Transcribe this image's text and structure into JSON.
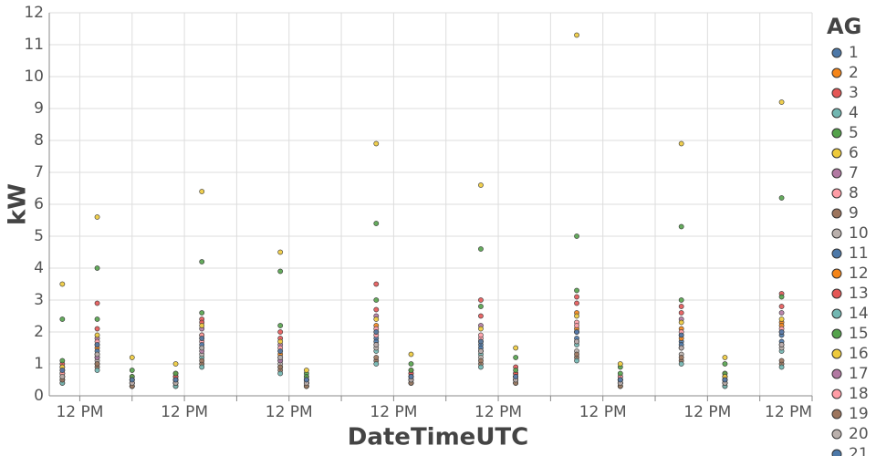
{
  "chart_data": {
    "type": "scatter",
    "x_label": "DateTimeUTC",
    "y_label": "kW",
    "legend_title": "AG",
    "grid": true,
    "legend": "right",
    "xlim": [
      5,
      180
    ],
    "ylim": [
      0,
      12
    ],
    "xticks": [
      {
        "value": 12,
        "label": "12 PM"
      },
      {
        "value": 24,
        "label": null
      },
      {
        "value": 36,
        "label": "12 PM"
      },
      {
        "value": 48,
        "label": null
      },
      {
        "value": 60,
        "label": "12 PM"
      },
      {
        "value": 72,
        "label": null
      },
      {
        "value": 84,
        "label": "12 PM"
      },
      {
        "value": 96,
        "label": null
      },
      {
        "value": 108,
        "label": "12 PM"
      },
      {
        "value": 120,
        "label": null
      },
      {
        "value": 132,
        "label": "12 PM"
      },
      {
        "value": 144,
        "label": null
      },
      {
        "value": 156,
        "label": "12 PM"
      },
      {
        "value": 168,
        "label": null
      },
      {
        "value": 180,
        "label": "12 PM"
      }
    ],
    "yticks": [
      0,
      1,
      2,
      3,
      4,
      5,
      6,
      7,
      8,
      9,
      10,
      11,
      12
    ],
    "x": [
      8,
      16,
      24,
      34,
      40,
      58,
      64,
      80,
      88,
      104,
      112,
      126,
      136,
      150,
      160,
      173
    ],
    "series": [
      {
        "name": "1",
        "color": "#4c78a8",
        "values": [
          0.6,
          1.2,
          0.4,
          0.5,
          1.5,
          1.1,
          0.4,
          1.8,
          0.5,
          1.6,
          0.6,
          2.0,
          0.5,
          1.7,
          0.6,
          1.9
        ]
      },
      {
        "name": "2",
        "color": "#f58518",
        "values": [
          0.8,
          1.5,
          0.5,
          0.4,
          1.9,
          1.3,
          0.5,
          2.2,
          0.6,
          1.4,
          0.7,
          2.6,
          0.4,
          2.1,
          0.5,
          2.3
        ]
      },
      {
        "name": "3",
        "color": "#e45756",
        "values": [
          1.0,
          2.9,
          0.6,
          0.7,
          2.4,
          2.0,
          0.6,
          3.5,
          0.8,
          3.0,
          0.9,
          3.1,
          0.6,
          2.8,
          0.7,
          3.2
        ]
      },
      {
        "name": "4",
        "color": "#72b7b2",
        "values": [
          0.5,
          1.0,
          0.3,
          0.4,
          1.2,
          0.9,
          0.3,
          1.4,
          0.4,
          1.3,
          0.5,
          1.6,
          0.4,
          1.5,
          0.4,
          1.4
        ]
      },
      {
        "name": "5",
        "color": "#54a24b",
        "values": [
          2.4,
          4.0,
          0.8,
          0.6,
          4.2,
          3.9,
          0.7,
          5.4,
          1.0,
          4.6,
          1.2,
          5.0,
          0.9,
          5.3,
          1.0,
          6.2
        ]
      },
      {
        "name": "6",
        "color": "#eeca3b",
        "values": [
          3.5,
          5.6,
          1.2,
          1.0,
          6.4,
          4.5,
          0.8,
          7.9,
          1.3,
          6.6,
          1.5,
          11.3,
          1.0,
          7.9,
          1.2,
          9.2
        ]
      },
      {
        "name": "7",
        "color": "#b279a2",
        "values": [
          0.7,
          1.8,
          0.4,
          0.5,
          2.1,
          1.6,
          0.5,
          2.5,
          0.6,
          2.2,
          0.6,
          2.0,
          0.5,
          2.4,
          0.6,
          2.6
        ]
      },
      {
        "name": "8",
        "color": "#ff9da6",
        "values": [
          0.9,
          1.3,
          0.5,
          0.6,
          1.7,
          1.2,
          0.4,
          1.9,
          0.7,
          1.8,
          0.5,
          2.3,
          0.6,
          1.9,
          0.5,
          2.0
        ]
      },
      {
        "name": "9",
        "color": "#9d755d",
        "values": [
          0.4,
          0.9,
          0.3,
          0.3,
          1.0,
          0.8,
          0.3,
          1.1,
          0.4,
          1.0,
          0.4,
          1.2,
          0.3,
          1.1,
          0.3,
          1.0
        ]
      },
      {
        "name": "10",
        "color": "#bab0ac",
        "values": [
          0.6,
          1.1,
          0.4,
          0.4,
          1.3,
          1.0,
          0.4,
          1.5,
          0.5,
          1.2,
          0.5,
          1.4,
          0.4,
          1.3,
          0.4,
          1.5
        ]
      },
      {
        "name": "11",
        "color": "#4c78a8",
        "values": [
          0.5,
          1.4,
          0.3,
          0.5,
          1.6,
          1.2,
          0.4,
          1.7,
          0.5,
          1.5,
          0.5,
          1.8,
          0.4,
          1.6,
          0.5,
          1.7
        ]
      },
      {
        "name": "12",
        "color": "#f58518",
        "values": [
          0.7,
          1.6,
          0.4,
          0.4,
          1.8,
          1.4,
          0.5,
          2.0,
          0.6,
          1.7,
          0.6,
          2.1,
          0.5,
          1.8,
          0.5,
          2.2
        ]
      },
      {
        "name": "13",
        "color": "#e45756",
        "values": [
          0.8,
          2.1,
          0.5,
          0.6,
          2.3,
          1.8,
          0.5,
          2.7,
          0.7,
          2.5,
          0.7,
          2.9,
          0.5,
          2.6,
          0.6,
          2.8
        ]
      },
      {
        "name": "14",
        "color": "#72b7b2",
        "values": [
          0.4,
          0.8,
          0.3,
          0.3,
          0.9,
          0.7,
          0.3,
          1.0,
          0.4,
          0.9,
          0.4,
          1.1,
          0.3,
          1.0,
          0.3,
          0.9
        ]
      },
      {
        "name": "15",
        "color": "#54a24b",
        "values": [
          1.1,
          2.4,
          0.6,
          0.7,
          2.6,
          2.2,
          0.6,
          3.0,
          0.8,
          2.8,
          0.8,
          3.3,
          0.7,
          3.0,
          0.7,
          3.1
        ]
      },
      {
        "name": "16",
        "color": "#eeca3b",
        "values": [
          0.9,
          1.9,
          0.5,
          0.5,
          2.2,
          1.7,
          0.5,
          2.4,
          0.6,
          2.1,
          0.6,
          2.5,
          0.5,
          2.3,
          0.6,
          2.4
        ]
      },
      {
        "name": "17",
        "color": "#b279a2",
        "values": [
          0.6,
          1.2,
          0.4,
          0.4,
          1.4,
          1.1,
          0.4,
          1.6,
          0.5,
          1.4,
          0.5,
          1.7,
          0.4,
          1.5,
          0.4,
          1.6
        ]
      },
      {
        "name": "18",
        "color": "#ff9da6",
        "values": [
          0.7,
          1.7,
          0.4,
          0.5,
          1.9,
          1.5,
          0.5,
          2.1,
          0.6,
          1.9,
          0.6,
          2.2,
          0.5,
          2.0,
          0.5,
          2.1
        ]
      },
      {
        "name": "19",
        "color": "#9d755d",
        "values": [
          0.5,
          1.0,
          0.3,
          0.4,
          1.1,
          0.9,
          0.3,
          1.2,
          0.4,
          1.1,
          0.4,
          1.3,
          0.3,
          1.2,
          0.4,
          1.1
        ]
      },
      {
        "name": "20",
        "color": "#bab0ac",
        "values": [
          0.6,
          1.3,
          0.4,
          0.4,
          1.5,
          1.2,
          0.4,
          1.6,
          0.5,
          1.4,
          0.5,
          1.7,
          0.4,
          1.5,
          0.4,
          1.6
        ]
      },
      {
        "name": "21",
        "color": "#4c78a8",
        "values": [
          0.8,
          1.6,
          0.5,
          0.5,
          1.8,
          1.4,
          0.5,
          2.0,
          0.6,
          1.7,
          0.6,
          2.0,
          0.5,
          1.9,
          0.5,
          2.0
        ]
      }
    ]
  }
}
